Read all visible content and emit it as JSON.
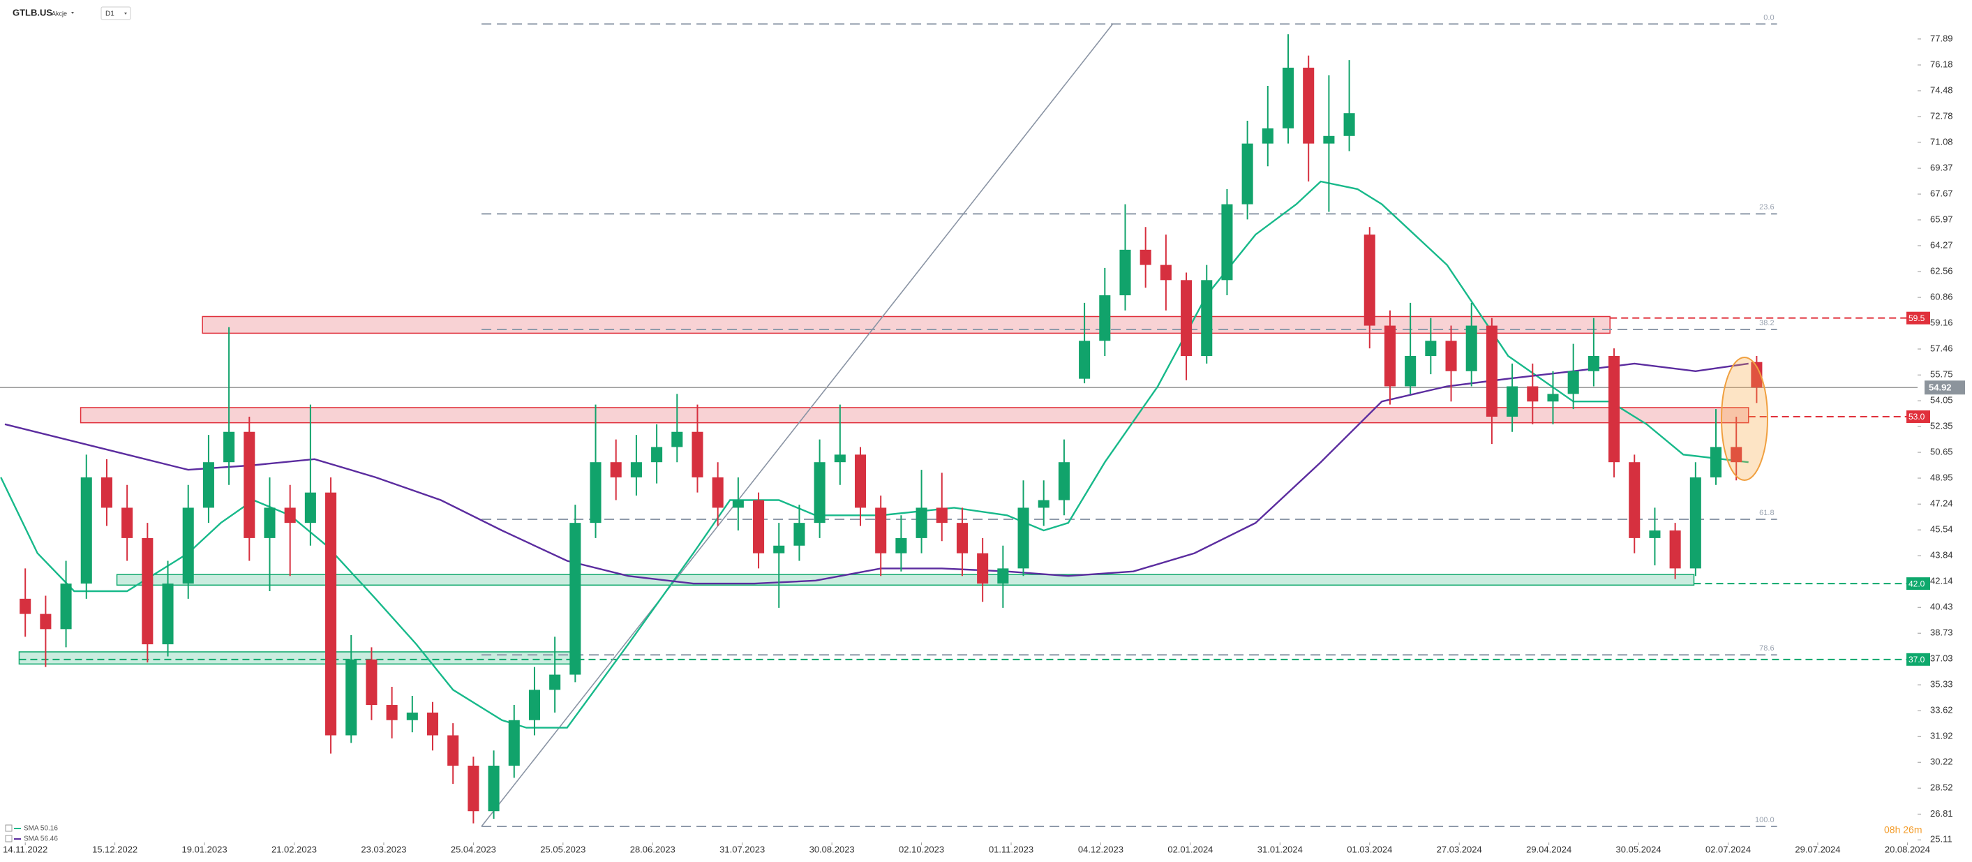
{
  "chart_data": {
    "type": "candlestick",
    "symbol": "GTLB.US",
    "asset_class": "Akcje",
    "interval": "D1",
    "countdown": "08h 26m",
    "up_color": "#11a36b",
    "down_color": "#d6303f",
    "x": [
      0,
      5,
      10,
      15,
      20,
      25,
      30,
      35,
      40,
      45,
      50,
      55,
      60,
      65,
      70,
      75,
      80,
      85,
      90,
      95,
      100,
      105,
      110,
      115,
      120,
      125,
      130,
      135,
      140,
      145,
      150,
      155,
      160,
      165,
      170,
      175,
      180,
      185,
      190,
      195,
      200,
      205,
      210,
      215,
      220,
      225,
      230,
      235,
      240,
      245,
      250,
      255,
      260,
      265,
      270,
      275,
      280,
      285,
      290,
      295,
      300,
      305,
      310,
      315,
      320,
      325,
      330,
      335,
      340,
      345,
      350,
      355,
      360,
      365,
      370,
      375,
      380,
      385,
      390,
      395,
      400,
      405,
      410,
      415,
      420,
      425
    ],
    "open": [
      41,
      40,
      39,
      42,
      49,
      47,
      45,
      38,
      42,
      47,
      50,
      52,
      45,
      47,
      46,
      48,
      32,
      37,
      34,
      33,
      33.5,
      32,
      30,
      27,
      30,
      33,
      35,
      36,
      46,
      50,
      49,
      50,
      51,
      52,
      49,
      47,
      47.5,
      44,
      44.5,
      46,
      50,
      50.5,
      47,
      44,
      45,
      47,
      46,
      44,
      42,
      43,
      47,
      47.5,
      55.5,
      58,
      61,
      64,
      63,
      62,
      57,
      62,
      67,
      71,
      72,
      76,
      71,
      71.5,
      65,
      59,
      55,
      57,
      58,
      56,
      59,
      53,
      55,
      54,
      54.5,
      56,
      57,
      50,
      45,
      45.5,
      43,
      49,
      51,
      56.6
    ],
    "high": [
      43,
      41.2,
      43.5,
      50.5,
      50.2,
      48.5,
      46,
      43.5,
      48.5,
      51.8,
      58.9,
      53,
      49,
      48.5,
      53.8,
      49,
      38.6,
      37.8,
      35.2,
      34.6,
      34.2,
      32.8,
      30.6,
      31,
      34,
      36.5,
      38.5,
      47.2,
      53.8,
      51.5,
      51.8,
      52.5,
      54.5,
      53.8,
      50,
      49,
      48,
      46,
      47.2,
      51.5,
      53.8,
      51,
      47.8,
      46.5,
      49.5,
      49.3,
      47,
      45,
      44.5,
      48.8,
      48.8,
      51.5,
      60.5,
      62.8,
      67,
      65.5,
      65,
      62.5,
      63,
      68,
      72.5,
      74.8,
      78.2,
      76.8,
      75.5,
      76.5,
      65.5,
      60,
      60.5,
      59.5,
      59,
      60.5,
      59.5,
      56.5,
      56.5,
      56,
      57.8,
      59.5,
      57.5,
      50.5,
      47,
      46,
      50,
      53.5,
      53,
      57
    ],
    "low": [
      38.5,
      36.5,
      37.8,
      41,
      45.8,
      43.5,
      36.8,
      37.2,
      41,
      46,
      48.5,
      43.5,
      41.5,
      42.5,
      44.5,
      30.8,
      31.5,
      33,
      31.8,
      32.2,
      31,
      28.8,
      26.2,
      26.5,
      29.2,
      32,
      33.5,
      35.5,
      45,
      47.5,
      47.8,
      48.6,
      50,
      48,
      45.8,
      45.5,
      43,
      40.4,
      43.5,
      45,
      48.5,
      45.8,
      42.5,
      42.8,
      44,
      44.8,
      42.5,
      40.8,
      40.4,
      42.5,
      45.8,
      46.5,
      55.2,
      57,
      60,
      61.5,
      60,
      55.4,
      56.5,
      61,
      66,
      69.5,
      71,
      68.5,
      66.5,
      70.5,
      57.5,
      53.8,
      54.5,
      55.8,
      54,
      55,
      51.2,
      52,
      52.5,
      52.5,
      53.5,
      55,
      49,
      44,
      43.2,
      42.3,
      42.5,
      48.5,
      48.8,
      53.9
    ],
    "close": [
      40,
      39,
      42,
      49,
      47,
      45,
      38,
      42,
      47,
      50,
      52,
      45,
      47,
      46,
      48,
      32,
      37,
      34,
      33,
      33.5,
      32,
      30,
      27,
      30,
      33,
      35,
      36,
      46,
      50,
      49,
      50,
      51,
      52,
      49,
      47,
      47.5,
      44,
      44.5,
      46,
      50,
      50.5,
      47,
      44,
      45,
      47,
      46,
      44,
      42,
      43,
      47,
      47.5,
      50,
      58,
      61,
      64,
      63,
      62,
      57,
      62,
      67,
      71,
      72,
      76,
      71,
      71.5,
      73,
      59,
      55,
      57,
      58,
      56,
      59,
      53,
      55,
      54,
      54.5,
      56,
      57,
      50,
      45,
      45.5,
      43,
      49,
      51,
      50,
      54.92
    ],
    "last_price": 54.92,
    "series": [
      {
        "name": "SMA 50.16",
        "color": "#17b98a",
        "x": [
          -6,
          3,
          12,
          25,
          40,
          48,
          56,
          65,
          74,
          86,
          96,
          105,
          117,
          123,
          133,
          148,
          164,
          173,
          185,
          194,
          210,
          228,
          241,
          250,
          256,
          265,
          278,
          290,
          302,
          312,
          318,
          327,
          333,
          349,
          364,
          380,
          389,
          398,
          407,
          423
        ],
        "values": [
          49,
          44,
          41.5,
          41.5,
          44,
          46,
          47.5,
          46.5,
          44.5,
          41,
          38,
          35,
          33,
          32.5,
          32.5,
          38,
          44,
          47.5,
          47.5,
          46.5,
          46.5,
          47,
          46.5,
          45.5,
          46,
          50,
          55,
          61,
          65,
          67,
          68.5,
          68,
          67,
          63,
          57,
          54,
          54,
          52.5,
          50.5,
          50
        ]
      },
      {
        "name": "SMA 56.46",
        "color": "#5b2c9f",
        "x": [
          -5,
          25,
          40,
          56,
          71,
          86,
          102,
          117,
          133,
          148,
          164,
          179,
          194,
          210,
          225,
          241,
          256,
          272,
          287,
          302,
          318,
          333,
          349,
          364,
          380,
          395,
          410,
          423
        ],
        "values": [
          52.5,
          50.5,
          49.5,
          49.8,
          50.2,
          49,
          47.5,
          45.5,
          43.5,
          42.5,
          42,
          42,
          42.2,
          43,
          43,
          42.8,
          42.5,
          42.8,
          44,
          46,
          50,
          54,
          55,
          55.5,
          56,
          56.5,
          56,
          56.5
        ]
      }
    ],
    "zones": [
      {
        "x": [
          43.5,
          389
        ],
        "y": [
          58.5,
          59.6
        ],
        "color": "#e0303b"
      },
      {
        "x": [
          13.6,
          423
        ],
        "y": [
          52.6,
          53.6
        ],
        "color": "#e0303b"
      },
      {
        "x": [
          22.5,
          409.6
        ],
        "y": [
          41.9,
          42.6
        ],
        "color": "#0ea86c"
      },
      {
        "x": [
          -1.5,
          135.8
        ],
        "y": [
          36.7,
          37.5
        ],
        "color": "#0ea86c"
      }
    ],
    "levels": [
      59.5,
      {
        "value": 53,
        "label": "53.0"
      },
      {
        "value": 42,
        "label": "42.0"
      },
      {
        "value": 37,
        "label": "37.0"
      }
    ],
    "fib_x": [
      112,
      430
    ],
    "fib_levels": [
      {
        "ratio": "0.0",
        "price": 78.88
      },
      {
        "ratio": "23.6",
        "price": 66.37
      },
      {
        "ratio": "38.2",
        "price": 58.75
      },
      {
        "ratio": "61.8",
        "price": 46.24
      },
      {
        "ratio": "78.6",
        "price": 37.3
      },
      {
        "ratio": "100.0",
        "price": 26.0
      }
    ],
    "trendline": {
      "x": [
        112,
        267
      ],
      "y": [
        26.0,
        78.9
      ]
    },
    "xlim": [
      -6.2,
      464.5
    ],
    "ylim": [
      24.94,
      80.46
    ],
    "xticks": [
      {
        "value": 0,
        "label": "14.11.2022"
      },
      {
        "value": 22,
        "label": "15.12.2022"
      },
      {
        "value": 44,
        "label": "19.01.2023"
      },
      {
        "value": 66,
        "label": "21.02.2023"
      },
      {
        "value": 88,
        "label": "23.03.2023"
      },
      {
        "value": 110,
        "label": "25.04.2023"
      },
      {
        "value": 132,
        "label": "25.05.2023"
      },
      {
        "value": 154,
        "label": "28.06.2023"
      },
      {
        "value": 176,
        "label": "31.07.2023"
      },
      {
        "value": 198,
        "label": "30.08.2023"
      },
      {
        "value": 220,
        "label": "02.10.2023"
      },
      {
        "value": 242,
        "label": "01.11.2023"
      },
      {
        "value": 264,
        "label": "04.12.2023"
      },
      {
        "value": 286,
        "label": "02.01.2024"
      },
      {
        "value": 308,
        "label": "31.01.2024"
      },
      {
        "value": 330,
        "label": "01.03.2024"
      },
      {
        "value": 352,
        "label": "27.03.2024"
      },
      {
        "value": 374,
        "label": "29.04.2024"
      },
      {
        "value": 396,
        "label": "30.05.2024"
      },
      {
        "value": 418,
        "label": "02.07.2024"
      },
      {
        "value": 440,
        "label": "29.07.2024"
      },
      {
        "value": 462,
        "label": "20.08.2024"
      }
    ],
    "yticks": [
      77.89,
      76.18,
      74.48,
      72.78,
      71.08,
      69.37,
      67.67,
      65.97,
      64.27,
      62.56,
      60.86,
      59.16,
      57.46,
      55.75,
      54.05,
      52.35,
      50.65,
      48.95,
      47.24,
      45.54,
      43.84,
      42.14,
      40.43,
      38.73,
      37.03,
      35.33,
      33.62,
      31.92,
      30.22,
      28.52,
      26.81,
      25.11
    ]
  }
}
